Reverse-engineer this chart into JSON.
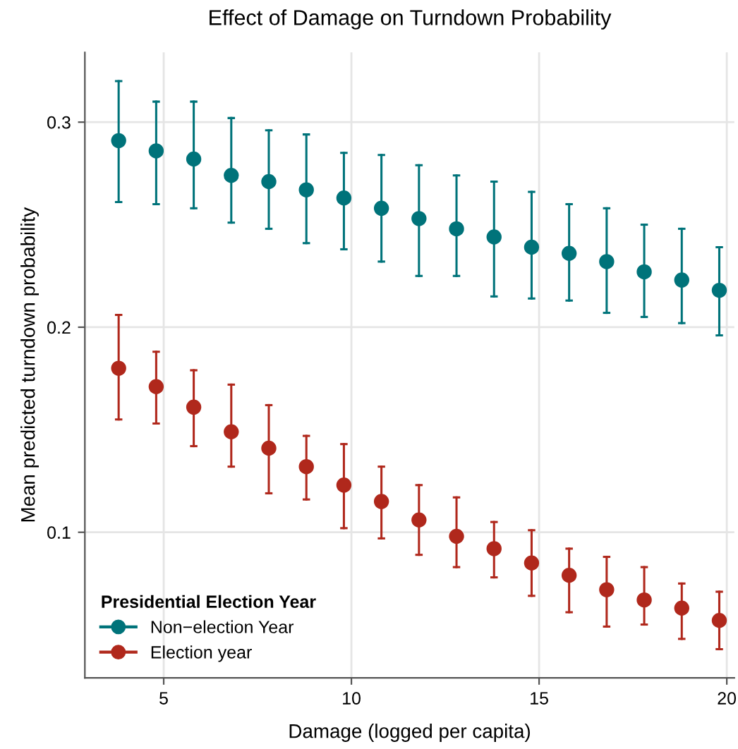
{
  "chart_data": {
    "type": "scatter",
    "title": "Effect of Damage on Turndown Probability",
    "xlabel": "Damage (logged per capita)",
    "ylabel": "Mean predicted turndown probability",
    "legend_title": "Presidential Election Year",
    "x": [
      3.8,
      4.8,
      5.8,
      6.8,
      7.8,
      8.8,
      9.8,
      10.8,
      11.8,
      12.8,
      13.8,
      14.8,
      15.8,
      16.8,
      17.8,
      18.8,
      19.8
    ],
    "series": [
      {
        "name": "Non−election Year",
        "color": "#00737a",
        "values": [
          0.291,
          0.286,
          0.282,
          0.274,
          0.271,
          0.267,
          0.263,
          0.258,
          0.253,
          0.248,
          0.244,
          0.239,
          0.236,
          0.232,
          0.227,
          0.223,
          0.218
        ],
        "errors": [
          [
            0.261,
            0.32
          ],
          [
            0.26,
            0.31
          ],
          [
            0.258,
            0.31
          ],
          [
            0.251,
            0.302
          ],
          [
            0.248,
            0.296
          ],
          [
            0.241,
            0.294
          ],
          [
            0.238,
            0.285
          ],
          [
            0.232,
            0.284
          ],
          [
            0.225,
            0.279
          ],
          [
            0.225,
            0.274
          ],
          [
            0.215,
            0.271
          ],
          [
            0.214,
            0.266
          ],
          [
            0.213,
            0.26
          ],
          [
            0.207,
            0.258
          ],
          [
            0.205,
            0.25
          ],
          [
            0.202,
            0.248
          ],
          [
            0.196,
            0.239
          ]
        ]
      },
      {
        "name": "Election year",
        "color": "#b0281c",
        "values": [
          0.18,
          0.171,
          0.161,
          0.149,
          0.141,
          0.132,
          0.123,
          0.115,
          0.106,
          0.098,
          0.092,
          0.085,
          0.079,
          0.072,
          0.067,
          0.063,
          0.057
        ],
        "errors": [
          [
            0.155,
            0.206
          ],
          [
            0.153,
            0.188
          ],
          [
            0.142,
            0.179
          ],
          [
            0.132,
            0.172
          ],
          [
            0.119,
            0.162
          ],
          [
            0.116,
            0.147
          ],
          [
            0.102,
            0.143
          ],
          [
            0.097,
            0.132
          ],
          [
            0.089,
            0.123
          ],
          [
            0.083,
            0.117
          ],
          [
            0.078,
            0.105
          ],
          [
            0.069,
            0.101
          ],
          [
            0.061,
            0.092
          ],
          [
            0.054,
            0.088
          ],
          [
            0.055,
            0.083
          ],
          [
            0.048,
            0.075
          ],
          [
            0.043,
            0.071
          ]
        ]
      }
    ],
    "xlim": [
      2.9,
      20.2
    ],
    "ylim": [
      0.029,
      0.334
    ],
    "xticks": [
      5,
      10,
      15,
      20
    ],
    "yticks": [
      0.1,
      0.2,
      0.3
    ],
    "grid": true,
    "legend": "bottom left",
    "marker": "circle"
  }
}
